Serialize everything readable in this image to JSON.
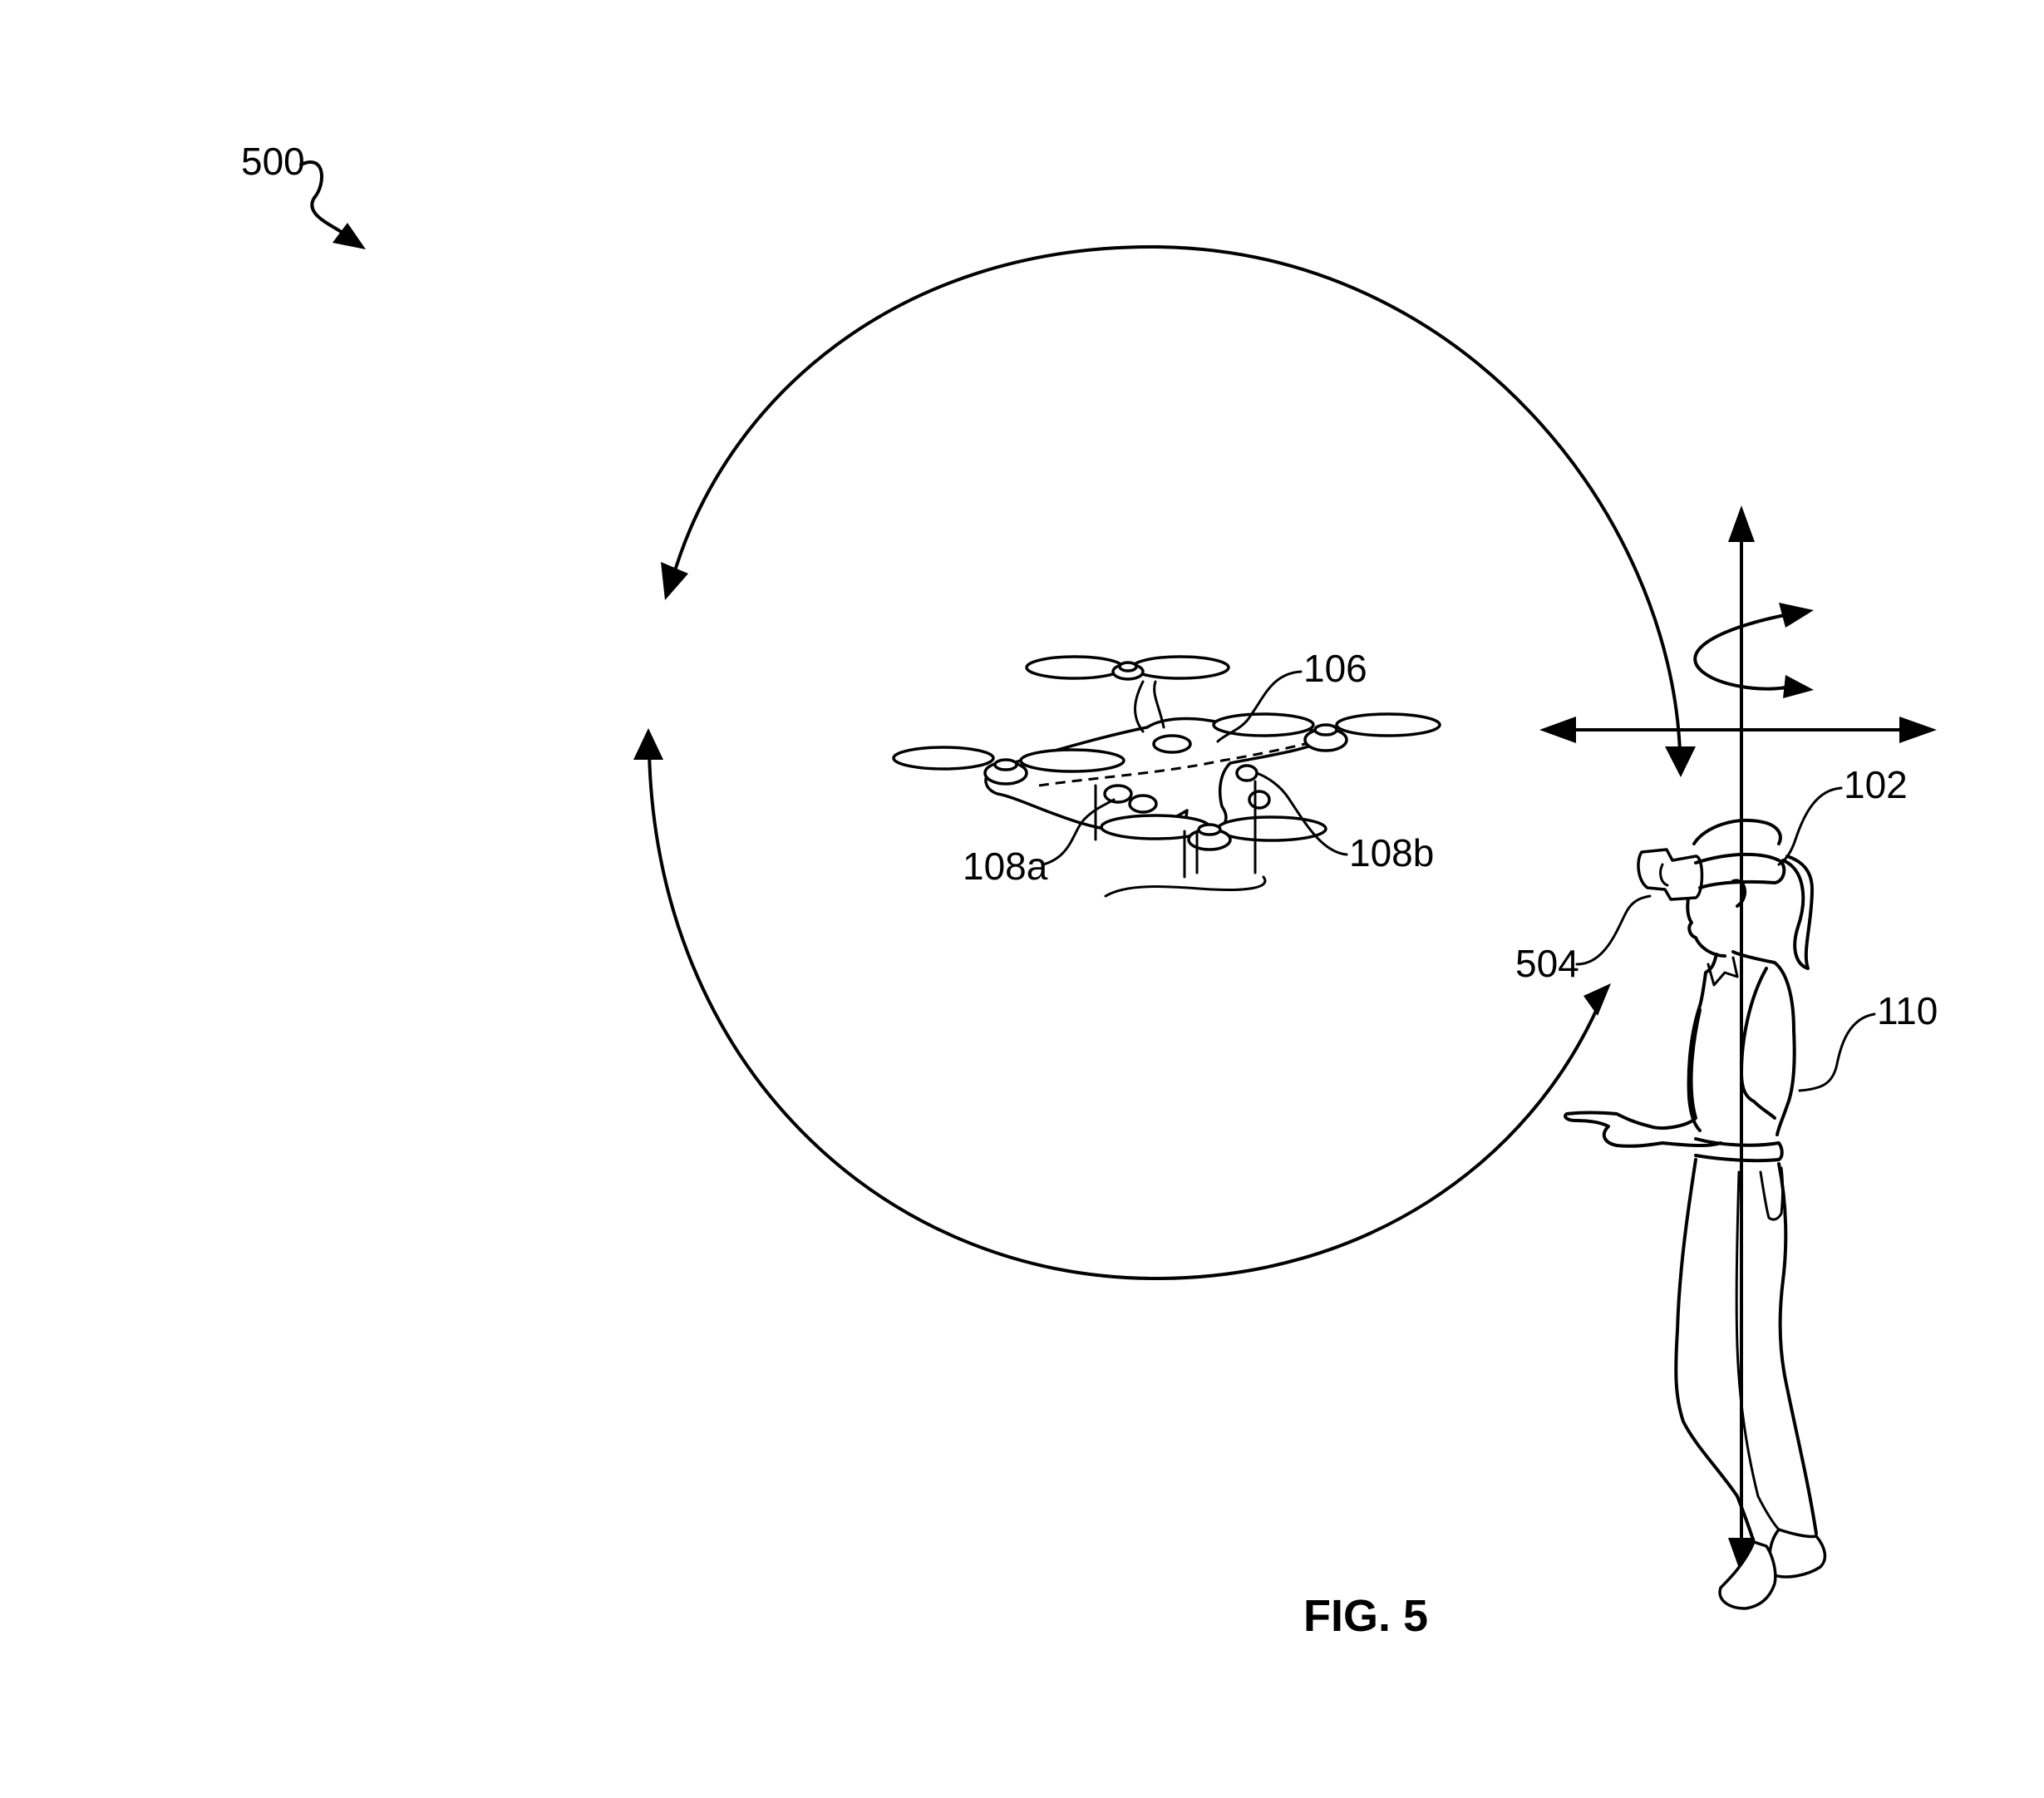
{
  "figure": {
    "caption": "FIG. 5",
    "reference_numerals": {
      "figure_number": "500",
      "drone": "106",
      "sensor_a": "108a",
      "sensor_b": "108b",
      "headset": "102",
      "user": "110",
      "gesture": "504"
    }
  },
  "colors": {
    "line": "#000000",
    "background": "#ffffff"
  }
}
